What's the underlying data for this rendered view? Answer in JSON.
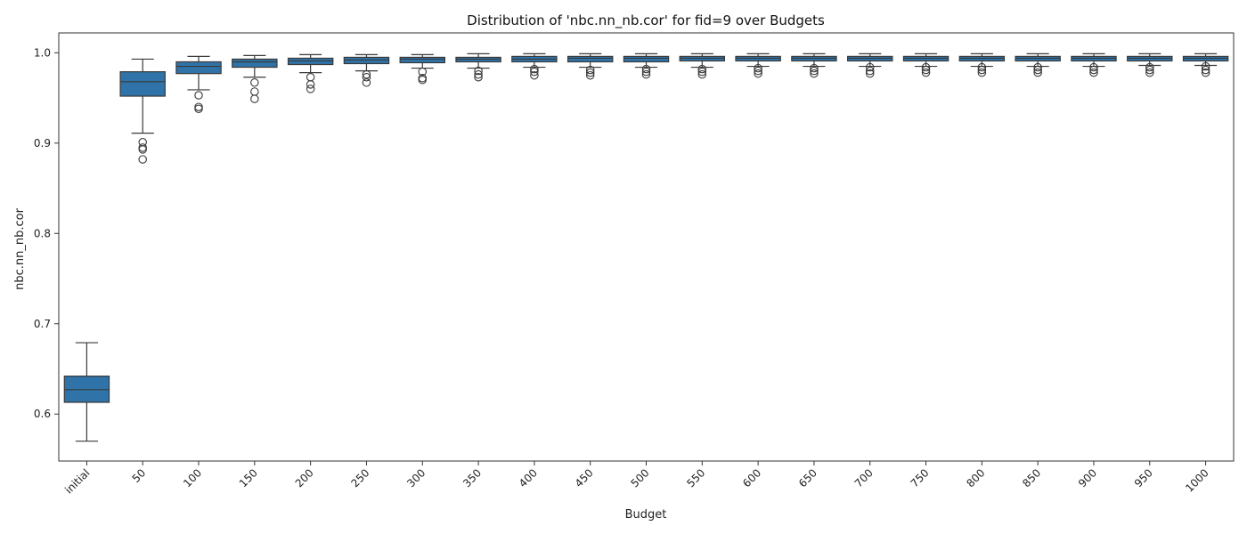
{
  "chart_data": {
    "type": "box",
    "title": "Distribution of 'nbc.nn_nb.cor' for fid=9 over Budgets",
    "xlabel": "Budget",
    "ylabel": "nbc.nn_nb.cor",
    "ylim": [
      0.548,
      1.022
    ],
    "yticks": [
      0.6,
      0.7,
      0.8,
      0.9,
      1.0
    ],
    "ytick_labels": [
      "0.6",
      "0.7",
      "0.8",
      "0.9",
      "1.0"
    ],
    "box_color": "#2f73a8",
    "categories": [
      "initial",
      "50",
      "100",
      "150",
      "200",
      "250",
      "300",
      "350",
      "400",
      "450",
      "500",
      "550",
      "600",
      "650",
      "700",
      "750",
      "800",
      "850",
      "900",
      "950",
      "1000"
    ],
    "boxes": [
      {
        "whisker_low": 0.57,
        "q1": 0.613,
        "median": 0.627,
        "q3": 0.642,
        "whisker_high": 0.679,
        "outliers": []
      },
      {
        "whisker_low": 0.911,
        "q1": 0.952,
        "median": 0.968,
        "q3": 0.979,
        "whisker_high": 0.993,
        "outliers": [
          0.901,
          0.895,
          0.893,
          0.882
        ]
      },
      {
        "whisker_low": 0.959,
        "q1": 0.977,
        "median": 0.985,
        "q3": 0.99,
        "whisker_high": 0.996,
        "outliers": [
          0.953,
          0.94,
          0.938
        ]
      },
      {
        "whisker_low": 0.973,
        "q1": 0.984,
        "median": 0.99,
        "q3": 0.993,
        "whisker_high": 0.997,
        "outliers": [
          0.967,
          0.957,
          0.949
        ]
      },
      {
        "whisker_low": 0.978,
        "q1": 0.987,
        "median": 0.991,
        "q3": 0.994,
        "whisker_high": 0.998,
        "outliers": [
          0.973,
          0.965,
          0.96
        ]
      },
      {
        "whisker_low": 0.98,
        "q1": 0.988,
        "median": 0.992,
        "q3": 0.995,
        "whisker_high": 0.998,
        "outliers": [
          0.976,
          0.973,
          0.967
        ]
      },
      {
        "whisker_low": 0.983,
        "q1": 0.989,
        "median": 0.993,
        "q3": 0.995,
        "whisker_high": 0.998,
        "outliers": [
          0.979,
          0.972,
          0.97
        ]
      },
      {
        "whisker_low": 0.983,
        "q1": 0.99,
        "median": 0.993,
        "q3": 0.995,
        "whisker_high": 0.999,
        "outliers": [
          0.98,
          0.976,
          0.973
        ]
      },
      {
        "whisker_low": 0.984,
        "q1": 0.99,
        "median": 0.993,
        "q3": 0.996,
        "whisker_high": 0.999,
        "outliers": [
          0.982,
          0.979,
          0.975
        ]
      },
      {
        "whisker_low": 0.984,
        "q1": 0.99,
        "median": 0.994,
        "q3": 0.996,
        "whisker_high": 0.999,
        "outliers": [
          0.981,
          0.978,
          0.975
        ]
      },
      {
        "whisker_low": 0.984,
        "q1": 0.99,
        "median": 0.994,
        "q3": 0.996,
        "whisker_high": 0.999,
        "outliers": [
          0.982,
          0.979,
          0.976
        ]
      },
      {
        "whisker_low": 0.984,
        "q1": 0.991,
        "median": 0.994,
        "q3": 0.996,
        "whisker_high": 0.999,
        "outliers": [
          0.982,
          0.979,
          0.976
        ]
      },
      {
        "whisker_low": 0.985,
        "q1": 0.991,
        "median": 0.994,
        "q3": 0.996,
        "whisker_high": 0.999,
        "outliers": [
          0.983,
          0.98,
          0.977
        ]
      },
      {
        "whisker_low": 0.985,
        "q1": 0.991,
        "median": 0.994,
        "q3": 0.996,
        "whisker_high": 0.999,
        "outliers": [
          0.983,
          0.98,
          0.977
        ]
      },
      {
        "whisker_low": 0.985,
        "q1": 0.991,
        "median": 0.994,
        "q3": 0.996,
        "whisker_high": 0.999,
        "outliers": [
          0.984,
          0.98,
          0.977
        ]
      },
      {
        "whisker_low": 0.985,
        "q1": 0.991,
        "median": 0.994,
        "q3": 0.996,
        "whisker_high": 0.999,
        "outliers": [
          0.984,
          0.981,
          0.978
        ]
      },
      {
        "whisker_low": 0.985,
        "q1": 0.991,
        "median": 0.994,
        "q3": 0.996,
        "whisker_high": 0.999,
        "outliers": [
          0.984,
          0.981,
          0.978
        ]
      },
      {
        "whisker_low": 0.985,
        "q1": 0.991,
        "median": 0.994,
        "q3": 0.996,
        "whisker_high": 0.999,
        "outliers": [
          0.984,
          0.981,
          0.978
        ]
      },
      {
        "whisker_low": 0.985,
        "q1": 0.991,
        "median": 0.994,
        "q3": 0.996,
        "whisker_high": 0.999,
        "outliers": [
          0.984,
          0.981,
          0.978
        ]
      },
      {
        "whisker_low": 0.986,
        "q1": 0.991,
        "median": 0.994,
        "q3": 0.996,
        "whisker_high": 0.999,
        "outliers": [
          0.984,
          0.981,
          0.978
        ]
      },
      {
        "whisker_low": 0.986,
        "q1": 0.991,
        "median": 0.994,
        "q3": 0.996,
        "whisker_high": 0.999,
        "outliers": [
          0.985,
          0.981,
          0.978
        ]
      }
    ]
  }
}
